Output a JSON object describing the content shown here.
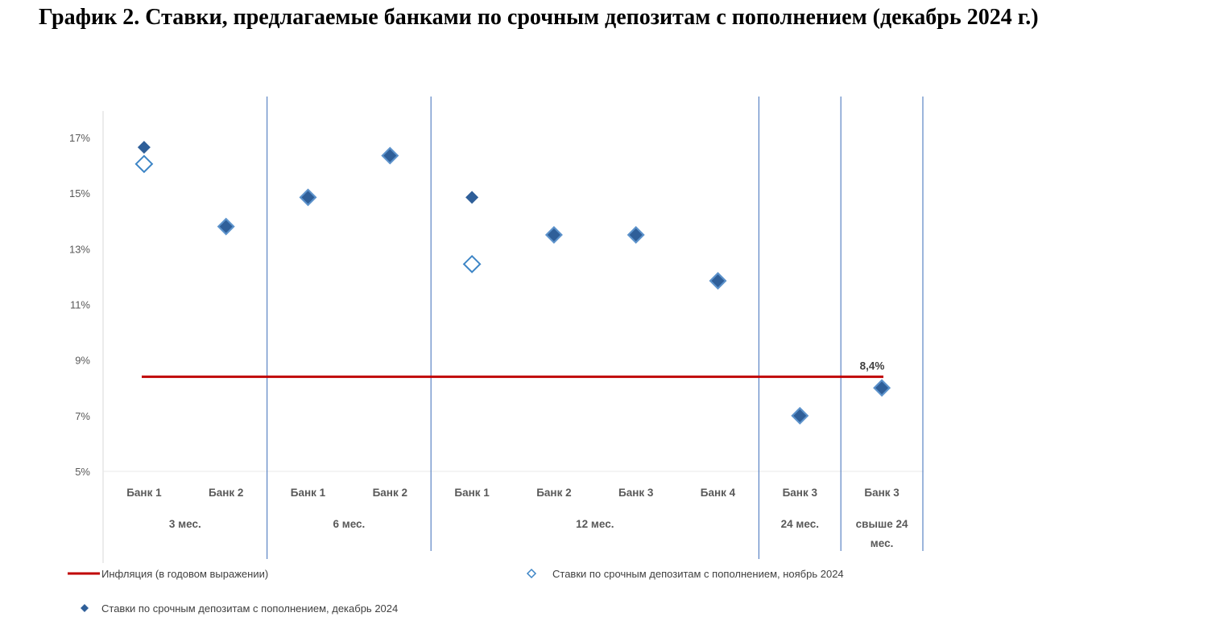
{
  "title": "График 2. Ставки, предлагаемые банками по срочным депозитам с пополнением (декабрь 2024 г.)",
  "chart_data": {
    "type": "scatter",
    "title": "График 2. Ставки, предлагаемые банками по срочным депозитам с пополнением (декабрь 2024 г.)",
    "ylim": [
      5,
      17
    ],
    "yticks": [
      "5%",
      "7%",
      "9%",
      "11%",
      "13%",
      "15%",
      "17%"
    ],
    "ytick_values": [
      5,
      7,
      9,
      11,
      13,
      15,
      17
    ],
    "grid": false,
    "legend_position": "bottom",
    "categories": [
      "Банк 1",
      "Банк 2",
      "Банк 1",
      "Банк 2",
      "Банк 1",
      "Банк 2",
      "Банк 3",
      "Банк 4",
      "Банк 3",
      "Банк 3"
    ],
    "groups": [
      {
        "label": "3 мес.",
        "count": 2
      },
      {
        "label": "6 мес.",
        "count": 2
      },
      {
        "label": "12 мес.",
        "count": 4
      },
      {
        "label": "24 мес.",
        "count": 1
      },
      {
        "label": "свыше 24 мес.",
        "count": 1
      }
    ],
    "series": [
      {
        "name": "Инфляция (в годовом выражении)",
        "kind": "line",
        "color": "#c00000",
        "value": 8.4,
        "data_label": "8,4%"
      },
      {
        "name": "Ставки по срочным депозитам с пополнением, ноябрь 2024",
        "kind": "hollow-diamond",
        "color": "#3d85c6",
        "values": [
          16.05,
          13.8,
          14.85,
          16.35,
          12.45,
          13.5,
          13.5,
          11.85,
          7.0,
          8.0
        ]
      },
      {
        "name": "Ставки по срочным депозитам с пополнением, декабрь 2024",
        "kind": "filled-diamond",
        "color": "#2f5f99",
        "values": [
          16.65,
          13.8,
          14.85,
          16.35,
          14.85,
          13.5,
          13.5,
          11.85,
          7.0,
          8.0
        ]
      }
    ],
    "divider_color": "#5b84c4"
  }
}
